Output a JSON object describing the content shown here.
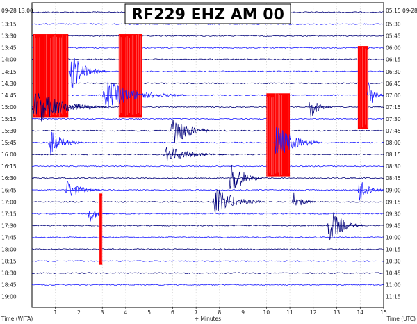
{
  "chart_data": {
    "type": "line",
    "title": "RF229 EHZ AM 00",
    "date_label": "09-28",
    "start_date_label_left": "09-28 13:00",
    "start_date_label_right": "05:15 09-28",
    "left_times": [
      "13:15",
      "13:30",
      "13:45",
      "14:00",
      "14:15",
      "14:30",
      "14:45",
      "15:00",
      "15:15",
      "15:30",
      "15:45",
      "16:00",
      "16:15",
      "16:30",
      "16:45",
      "17:00",
      "17:15",
      "17:30",
      "17:45",
      "18:00",
      "18:15",
      "18:30",
      "18:45",
      "19:00"
    ],
    "right_times": [
      "05:30",
      "05:45",
      "06:00",
      "06:15",
      "06:30",
      "06:45",
      "07:00",
      "07:15",
      "07:30",
      "07:45",
      "08:00",
      "08:15",
      "08:30",
      "08:45",
      "09:00",
      "09:15",
      "09:30",
      "09:45",
      "10:00",
      "10:15",
      "10:30",
      "10:45",
      "11:00",
      "11:15"
    ],
    "x_ticks": [
      "1",
      "2",
      "3",
      "4",
      "5",
      "6",
      "7",
      "8",
      "9",
      "10",
      "11",
      "12",
      "13",
      "14",
      "15"
    ],
    "xlim": [
      0,
      15
    ],
    "xlabel_left": "Time (WITA)",
    "xlabel_center": "+ Minutes",
    "xlabel_right": "Time (UTC)",
    "grid": true,
    "trace_colors": [
      "#00007a",
      "#1a1aff"
    ],
    "clip_color": "#ff0000",
    "events": [
      {
        "row": 5,
        "x_start": 0.05,
        "x_end": 1.55,
        "amp": 1.0,
        "clip": true
      },
      {
        "row": 5,
        "x_start": 1.6,
        "x_end": 3.2,
        "amp": 0.9
      },
      {
        "row": 5,
        "x_start": 3.7,
        "x_end": 4.7,
        "amp": 1.0,
        "clip": true
      },
      {
        "row": 7,
        "x_start": 3.0,
        "x_end": 6.5,
        "amp": 0.7
      },
      {
        "row": 8,
        "x_start": 0.0,
        "x_end": 3.2,
        "amp": 0.85
      },
      {
        "row": 8,
        "x_start": 11.8,
        "x_end": 12.8,
        "amp": 0.6
      },
      {
        "row": 6,
        "x_start": 13.9,
        "x_end": 14.35,
        "amp": 1.0,
        "clip": true
      },
      {
        "row": 7,
        "x_start": 14.3,
        "x_end": 15.0,
        "amp": 0.8
      },
      {
        "row": 10,
        "x_start": 5.9,
        "x_end": 7.8,
        "amp": 0.85
      },
      {
        "row": 11,
        "x_start": 0.7,
        "x_end": 2.2,
        "amp": 0.6
      },
      {
        "row": 12,
        "x_start": 5.6,
        "x_end": 8.4,
        "amp": 0.4
      },
      {
        "row": 10,
        "x_start": 10.0,
        "x_end": 11.0,
        "amp": 1.0,
        "clip": true
      },
      {
        "row": 11,
        "x_start": 10.3,
        "x_end": 12.4,
        "amp": 0.9
      },
      {
        "row": 14,
        "x_start": 8.4,
        "x_end": 9.8,
        "amp": 1.0
      },
      {
        "row": 16,
        "x_start": 7.7,
        "x_end": 10.0,
        "amp": 0.7
      },
      {
        "row": 15,
        "x_start": 1.4,
        "x_end": 2.9,
        "amp": 0.5
      },
      {
        "row": 15,
        "x_start": 13.9,
        "x_end": 15.0,
        "amp": 0.7
      },
      {
        "row": 16,
        "x_start": 11.1,
        "x_end": 12.1,
        "amp": 0.5
      },
      {
        "row": 17,
        "x_start": 2.4,
        "x_end": 3.3,
        "amp": 0.5
      },
      {
        "row": 18,
        "x_start": 12.6,
        "x_end": 14.1,
        "amp": 0.9
      },
      {
        "row": 19,
        "x_start": 2.9,
        "x_end": 3.05,
        "amp": 0.3
      },
      {
        "row": 18,
        "x_start": 2.85,
        "x_end": 3.0,
        "amp": 1.0,
        "clip": true,
        "span_rows": 6
      }
    ]
  }
}
